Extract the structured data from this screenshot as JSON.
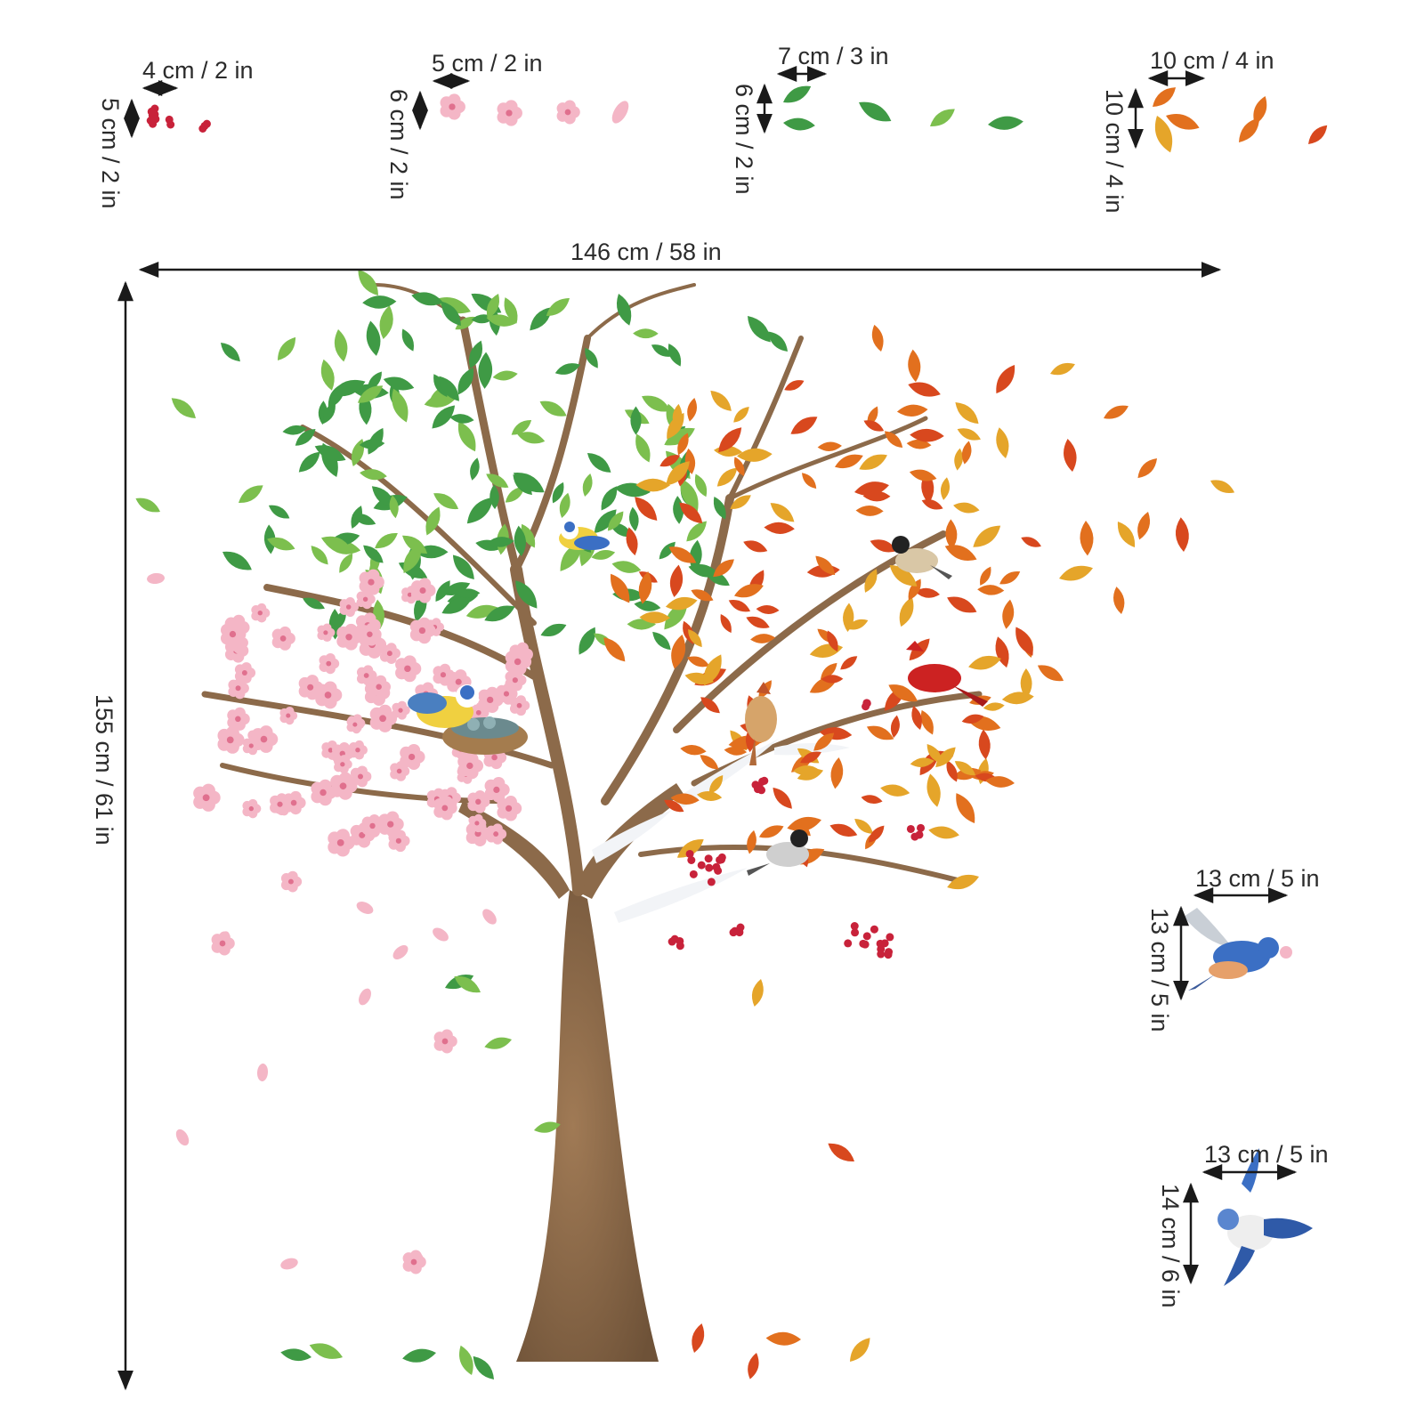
{
  "colors": {
    "trunk": "#8c6a4a",
    "trunk_dark": "#6e5238",
    "green_leaf": "#3f9a45",
    "green_leaf_light": "#7cbf4e",
    "orange_leaf": "#e2701e",
    "yellow_leaf": "#e5a52a",
    "red_leaf": "#d8481e",
    "blossom": "#f4b6c6",
    "blossom_center": "#e0708e",
    "berry": "#c8223a",
    "snow": "#f2f4f7",
    "cardinal": "#cc2222",
    "bluebird": "#3b6fc4",
    "tit_yellow": "#f0d040",
    "arrow": "#1a1a1a"
  },
  "icons": [
    "berries-icon",
    "blossom-icon",
    "green-leaf-icon",
    "autumn-leaf-icon",
    "bluebird-icon",
    "bluejay-icon",
    "cardinal-icon",
    "chickadee-icon",
    "blue-tit-icon",
    "nest-icon"
  ],
  "dimensions": {
    "tree_width": "146 cm / 58 in",
    "tree_height": "155 cm / 61 in",
    "berries_width": "4 cm / 2 in",
    "berries_height": "5 cm / 2 in",
    "blossom_width": "5 cm / 2 in",
    "blossom_height": "6 cm / 2 in",
    "green_leaf_width": "7 cm / 3 in",
    "green_leaf_height": "6 cm / 2 in",
    "autumn_leaf_width": "10 cm / 4 in",
    "autumn_leaf_height": "10 cm / 4 in",
    "bluebird_width": "13 cm / 5 in",
    "bluebird_height": "13 cm / 5 in",
    "bluejay_width": "13 cm / 5 in",
    "bluejay_height": "14 cm / 6 in"
  }
}
